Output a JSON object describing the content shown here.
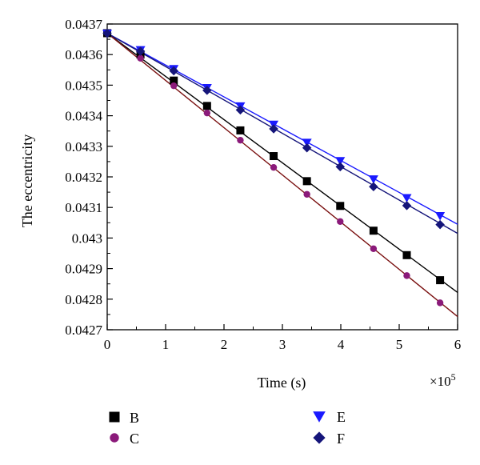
{
  "chart_data": {
    "type": "line",
    "title": "",
    "xlabel": "Time (s)",
    "ylabel": "The eccentricity",
    "x_multiplier_label": "×10",
    "x_multiplier_exponent": "5",
    "xlim": [
      0,
      600000
    ],
    "ylim": [
      0.0427,
      0.0437
    ],
    "x_ticks": [
      0,
      100000,
      200000,
      300000,
      400000,
      500000,
      600000
    ],
    "x_tick_labels": [
      "0",
      "1",
      "2",
      "3",
      "4",
      "5",
      "6"
    ],
    "y_ticks": [
      0.0427,
      0.0428,
      0.0429,
      0.043,
      0.0431,
      0.0432,
      0.0433,
      0.0434,
      0.0435,
      0.0436,
      0.0437
    ],
    "y_tick_labels": [
      "0.0427",
      "0.0428",
      "0.0429",
      "0.043",
      "0.0431",
      "0.0432",
      "0.0433",
      "0.0434",
      "0.0435",
      "0.0436",
      "0.0437"
    ],
    "grid": false,
    "legend_position": "bottom",
    "series": [
      {
        "name": "B",
        "marker": "square",
        "color": "#000000",
        "line_color": "#000000",
        "line": [
          [
            0,
            0.04367
          ],
          [
            600000,
            0.042822
          ]
        ],
        "x": [
          0,
          57000,
          114000,
          171000,
          228000,
          285000,
          342000,
          399000,
          456000,
          513000,
          570000
        ],
        "y": [
          0.04367,
          0.0436,
          0.043515,
          0.043432,
          0.043352,
          0.043268,
          0.043186,
          0.043105,
          0.043024,
          0.042944,
          0.042862
        ]
      },
      {
        "name": "C",
        "marker": "circle",
        "color": "#8b1a7a",
        "line_color": "#7a1010",
        "line": [
          [
            0,
            0.04367
          ],
          [
            600000,
            0.042743
          ]
        ],
        "x": [
          0,
          57000,
          114000,
          171000,
          228000,
          285000,
          342000,
          399000,
          456000,
          513000,
          570000
        ],
        "y": [
          0.04367,
          0.043588,
          0.043498,
          0.043409,
          0.04332,
          0.043231,
          0.043143,
          0.043054,
          0.042965,
          0.042877,
          0.042788
        ]
      },
      {
        "name": "E",
        "marker": "triangle-down",
        "color": "#1a1aff",
        "line_color": "#1a1aff",
        "line": [
          [
            0,
            0.04367
          ],
          [
            600000,
            0.043045
          ]
        ],
        "x": [
          0,
          57000,
          114000,
          171000,
          228000,
          285000,
          342000,
          399000,
          456000,
          513000,
          570000
        ],
        "y": [
          0.04367,
          0.043616,
          0.043554,
          0.043492,
          0.043432,
          0.043372,
          0.043313,
          0.043253,
          0.043193,
          0.043132,
          0.043073
        ]
      },
      {
        "name": "F",
        "marker": "diamond",
        "color": "#15157a",
        "line_color": "#15157a",
        "line": [
          [
            0,
            0.04367
          ],
          [
            600000,
            0.043015
          ]
        ],
        "x": [
          0,
          57000,
          114000,
          171000,
          228000,
          285000,
          342000,
          399000,
          456000,
          513000,
          570000
        ],
        "y": [
          0.04367,
          0.043611,
          0.043547,
          0.043483,
          0.043419,
          0.043357,
          0.043295,
          0.043233,
          0.043168,
          0.043106,
          0.043044
        ]
      }
    ]
  }
}
